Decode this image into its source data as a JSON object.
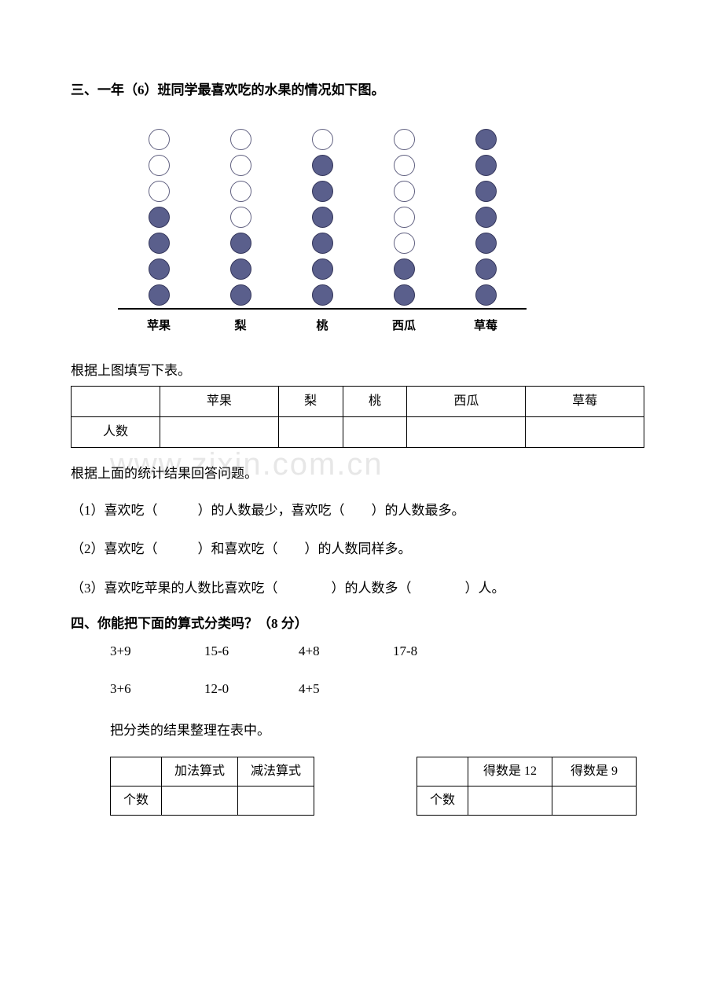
{
  "section3": {
    "title": "三、一年（6）班同学最喜欢吃的水果的情况如下图。",
    "chart": {
      "type": "dot-column",
      "maxRows": 7,
      "circle_filled_color": "#5a5f8c",
      "circle_border_color": "#33355a",
      "circle_empty_border": "#606080",
      "categories": [
        "苹果",
        "梨",
        "桃",
        "西瓜",
        "草莓"
      ],
      "filled_counts": [
        4,
        3,
        6,
        2,
        7
      ],
      "total_circles": [
        7,
        7,
        7,
        7,
        7
      ]
    },
    "fill_table_prompt": "根据上图填写下表。",
    "table": {
      "headers": [
        "",
        "苹果",
        "梨",
        "桃",
        "西瓜",
        "草莓"
      ],
      "row_label": "人数"
    },
    "result_prompt": "根据上面的统计结果回答问题。",
    "q1": "（1）喜欢吃（　　　）的人数最少，喜欢吃（　　）的人数最多。",
    "q2": "（2）喜欢吃（　　　）和喜欢吃（　　）的人数同样多。",
    "q3": "（3）喜欢吃苹果的人数比喜欢吃（　　　　）的人数多（　　　　）人。"
  },
  "section4": {
    "title": "四、你能把下面的算式分类吗？（8 分）",
    "row1": [
      "3+9",
      "15-6",
      "4+8",
      "17-8"
    ],
    "row2": [
      "3+6",
      "12-0",
      "4+5",
      ""
    ],
    "organize_prompt": "把分类的结果整理在表中。",
    "tableA": {
      "h1": "加法算式",
      "h2": "减法算式",
      "row_label": "个数"
    },
    "tableB": {
      "h1": "得数是 12",
      "h2": "得数是 9",
      "row_label": "个数"
    }
  },
  "watermark": "www.zixin.com.cn"
}
